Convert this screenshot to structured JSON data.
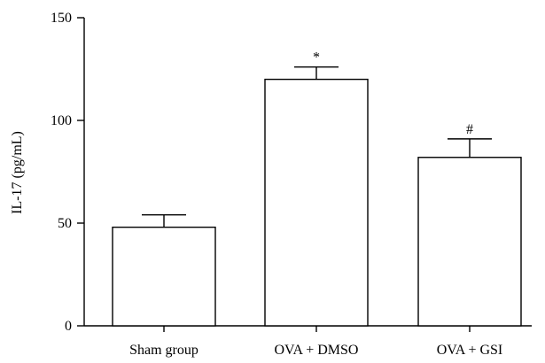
{
  "chart_data": {
    "type": "bar",
    "title": "",
    "xlabel": "",
    "ylabel": "IL-17 (pg/mL)",
    "ylim": [
      0,
      150
    ],
    "yticks": [
      0,
      50,
      100,
      150
    ],
    "grid": false,
    "categories": [
      "Sham group",
      "OVA + DMSO",
      "OVA + GSI"
    ],
    "values": [
      48,
      120,
      82
    ],
    "errors": [
      6,
      6,
      9
    ],
    "annotations": [
      "",
      "*",
      "#"
    ]
  }
}
